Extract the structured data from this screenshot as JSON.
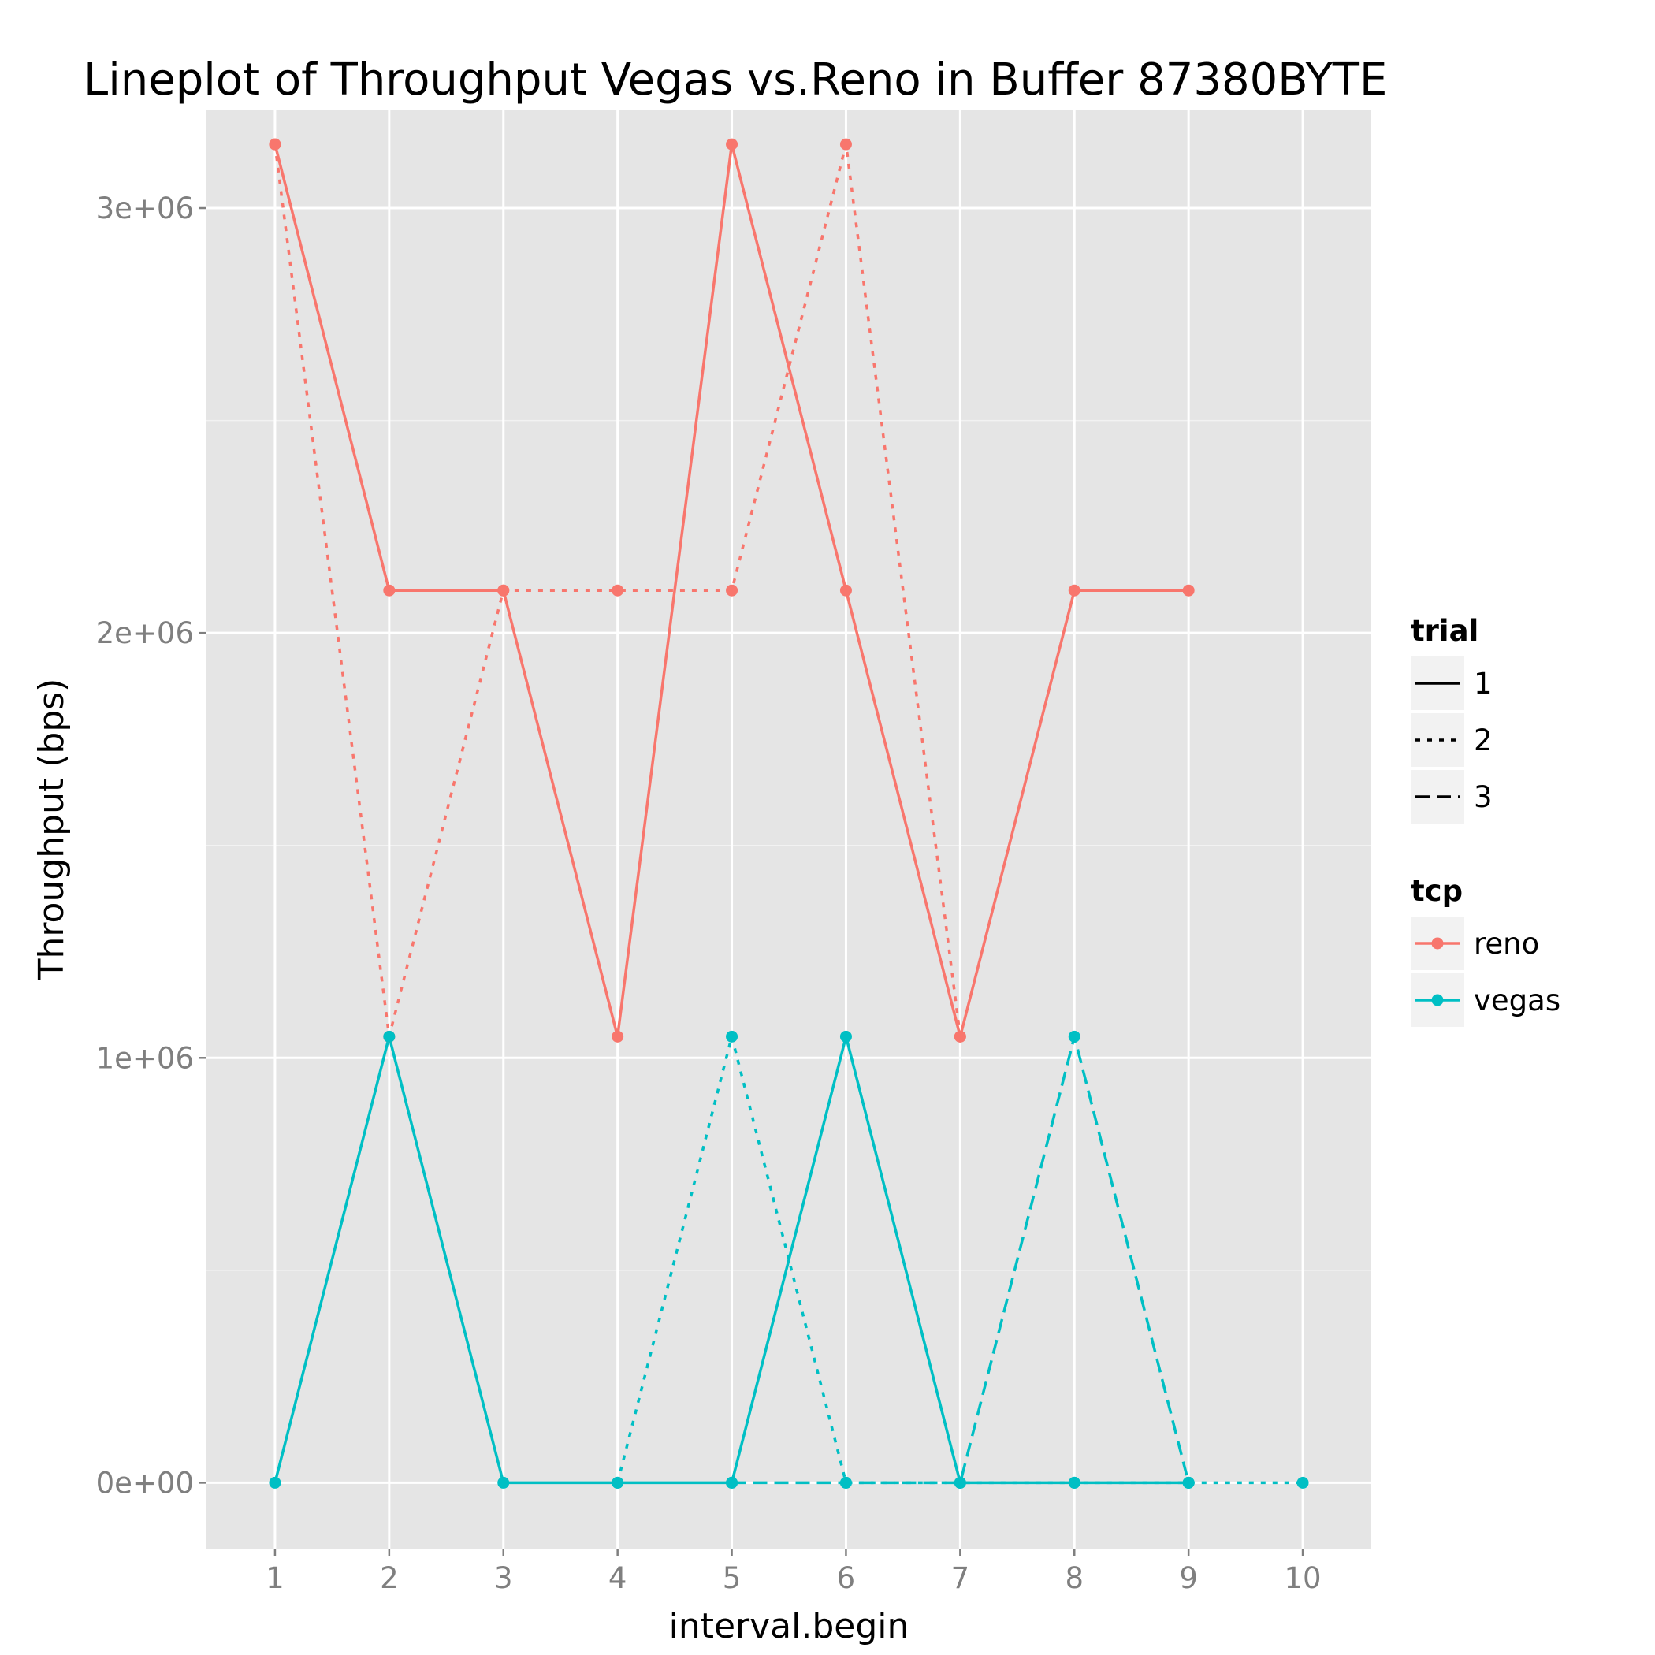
{
  "chart_data": {
    "type": "line",
    "title": "Lineplot of Throughput Vegas vs.Reno in Buffer 87380BYTE",
    "xlabel": "interval.begin",
    "ylabel": "Throughput (bps)",
    "xlim": [
      0.4,
      10.6
    ],
    "ylim": [
      -155000,
      3230000
    ],
    "x_ticks": [
      1,
      2,
      3,
      4,
      5,
      6,
      7,
      8,
      9,
      10
    ],
    "x_tick_labels": [
      "1",
      "2",
      "3",
      "4",
      "5",
      "6",
      "7",
      "8",
      "9",
      "10"
    ],
    "y_ticks": [
      0,
      1000000,
      2000000,
      3000000
    ],
    "y_tick_labels": [
      "0e+00",
      "1e+06",
      "2e+06",
      "3e+06"
    ],
    "grid": true,
    "background": "#e5e5e5",
    "colors": {
      "reno": "#f8766d",
      "vegas": "#00bfc4"
    },
    "legend_position": "right",
    "legend": {
      "trial": {
        "title": "trial",
        "items": [
          "1",
          "2",
          "3"
        ]
      },
      "tcp": {
        "title": "tcp",
        "items": [
          "reno",
          "vegas"
        ]
      }
    },
    "series": [
      {
        "tcp": "reno",
        "trial": "1",
        "x": [
          1,
          2,
          3,
          4,
          5,
          6,
          7,
          8,
          9
        ],
        "y": [
          3150000,
          2100000,
          2100000,
          1050000,
          3150000,
          2100000,
          1050000,
          2100000,
          2100000
        ]
      },
      {
        "tcp": "reno",
        "trial": "2",
        "x": [
          1,
          2,
          3,
          4,
          5,
          6,
          7
        ],
        "y": [
          3150000,
          1050000,
          2100000,
          2100000,
          2100000,
          3150000,
          1050000
        ]
      },
      {
        "tcp": "vegas",
        "trial": "1",
        "x": [
          1,
          2,
          3,
          4,
          5,
          6,
          7,
          8,
          9
        ],
        "y": [
          0,
          1050000,
          0,
          0,
          0,
          1050000,
          0,
          0,
          0
        ]
      },
      {
        "tcp": "vegas",
        "trial": "2",
        "x": [
          4,
          5,
          6,
          7,
          8,
          9,
          10
        ],
        "y": [
          0,
          1050000,
          0,
          0,
          0,
          0,
          0
        ]
      },
      {
        "tcp": "vegas",
        "trial": "3",
        "x": [
          5,
          6,
          7,
          8,
          9
        ],
        "y": [
          0,
          0,
          0,
          1050000,
          0
        ]
      }
    ]
  }
}
